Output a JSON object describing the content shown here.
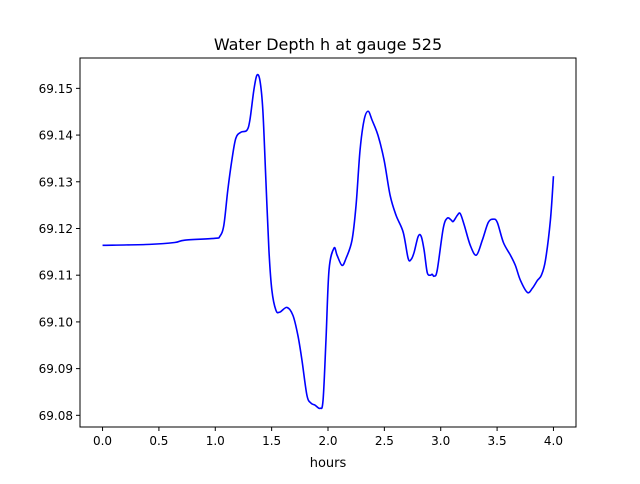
{
  "chart_data": {
    "type": "line",
    "title": "Water Depth h at gauge 525",
    "xlabel": "hours",
    "ylabel": "",
    "xlim": [
      -0.2,
      4.2
    ],
    "ylim": [
      69.0775,
      69.1565
    ],
    "xticks": [
      0.0,
      0.5,
      1.0,
      1.5,
      2.0,
      2.5,
      3.0,
      3.5,
      4.0
    ],
    "xtick_labels": [
      "0.0",
      "0.5",
      "1.0",
      "1.5",
      "2.0",
      "2.5",
      "3.0",
      "3.5",
      "4.0"
    ],
    "yticks": [
      69.08,
      69.09,
      69.1,
      69.11,
      69.12,
      69.13,
      69.14,
      69.15
    ],
    "ytick_labels": [
      "69.08",
      "69.09",
      "69.10",
      "69.11",
      "69.12",
      "69.13",
      "69.14",
      "69.15"
    ],
    "grid": false,
    "series": [
      {
        "name": "h",
        "color": "#0000ff",
        "points": [
          [
            0,
            69.1164
          ],
          [
            0.418,
            69.1166
          ],
          [
            0.64,
            69.117
          ],
          [
            0.729,
            69.1175
          ],
          [
            0.996,
            69.1179
          ],
          [
            1.04,
            69.1183
          ],
          [
            1.076,
            69.1207
          ],
          [
            1.111,
            69.1282
          ],
          [
            1.147,
            69.1346
          ],
          [
            1.182,
            69.1393
          ],
          [
            1.227,
            69.1406
          ],
          [
            1.28,
            69.141
          ],
          [
            1.307,
            69.1432
          ],
          [
            1.342,
            69.1496
          ],
          [
            1.369,
            69.1528
          ],
          [
            1.396,
            69.1517
          ],
          [
            1.422,
            69.1453
          ],
          [
            1.449,
            69.1303
          ],
          [
            1.476,
            69.1153
          ],
          [
            1.502,
            69.1068
          ],
          [
            1.538,
            69.1025
          ],
          [
            1.573,
            69.1021
          ],
          [
            1.636,
            69.1031
          ],
          [
            1.689,
            69.1014
          ],
          [
            1.733,
            69.0971
          ],
          [
            1.769,
            69.0918
          ],
          [
            1.813,
            69.0843
          ],
          [
            1.849,
            69.0826
          ],
          [
            1.884,
            69.0822
          ],
          [
            1.929,
            69.0815
          ],
          [
            1.956,
            69.0832
          ],
          [
            1.982,
            69.0961
          ],
          [
            2.009,
            69.1111
          ],
          [
            2.053,
            69.1158
          ],
          [
            2.08,
            69.1143
          ],
          [
            2.124,
            69.1121
          ],
          [
            2.16,
            69.1136
          ],
          [
            2.213,
            69.1175
          ],
          [
            2.249,
            69.125
          ],
          [
            2.284,
            69.1367
          ],
          [
            2.32,
            69.1432
          ],
          [
            2.356,
            69.1451
          ],
          [
            2.391,
            69.1432
          ],
          [
            2.444,
            69.1399
          ],
          [
            2.498,
            69.1346
          ],
          [
            2.551,
            69.1271
          ],
          [
            2.604,
            69.1228
          ],
          [
            2.667,
            69.1192
          ],
          [
            2.711,
            69.1136
          ],
          [
            2.738,
            69.1134
          ],
          [
            2.764,
            69.1149
          ],
          [
            2.8,
            69.1183
          ],
          [
            2.827,
            69.1183
          ],
          [
            2.853,
            69.1153
          ],
          [
            2.88,
            69.1106
          ],
          [
            2.907,
            69.11
          ],
          [
            2.924,
            69.1102
          ],
          [
            2.942,
            69.1098
          ],
          [
            2.969,
            69.1111
          ],
          [
            3.022,
            69.12
          ],
          [
            3.058,
            69.1222
          ],
          [
            3.093,
            69.1218
          ],
          [
            3.111,
            69.1215
          ],
          [
            3.147,
            69.1228
          ],
          [
            3.173,
            69.1232
          ],
          [
            3.209,
            69.1207
          ],
          [
            3.262,
            69.1164
          ],
          [
            3.316,
            69.1143
          ],
          [
            3.369,
            69.1175
          ],
          [
            3.422,
            69.1213
          ],
          [
            3.467,
            69.122
          ],
          [
            3.502,
            69.1213
          ],
          [
            3.556,
            69.117
          ],
          [
            3.618,
            69.1143
          ],
          [
            3.662,
            69.1121
          ],
          [
            3.707,
            69.1089
          ],
          [
            3.769,
            69.1063
          ],
          [
            3.813,
            69.1072
          ],
          [
            3.858,
            69.1089
          ],
          [
            3.893,
            69.11
          ],
          [
            3.929,
            69.1132
          ],
          [
            3.973,
            69.1218
          ],
          [
            4.0,
            69.1312
          ]
        ]
      }
    ]
  }
}
